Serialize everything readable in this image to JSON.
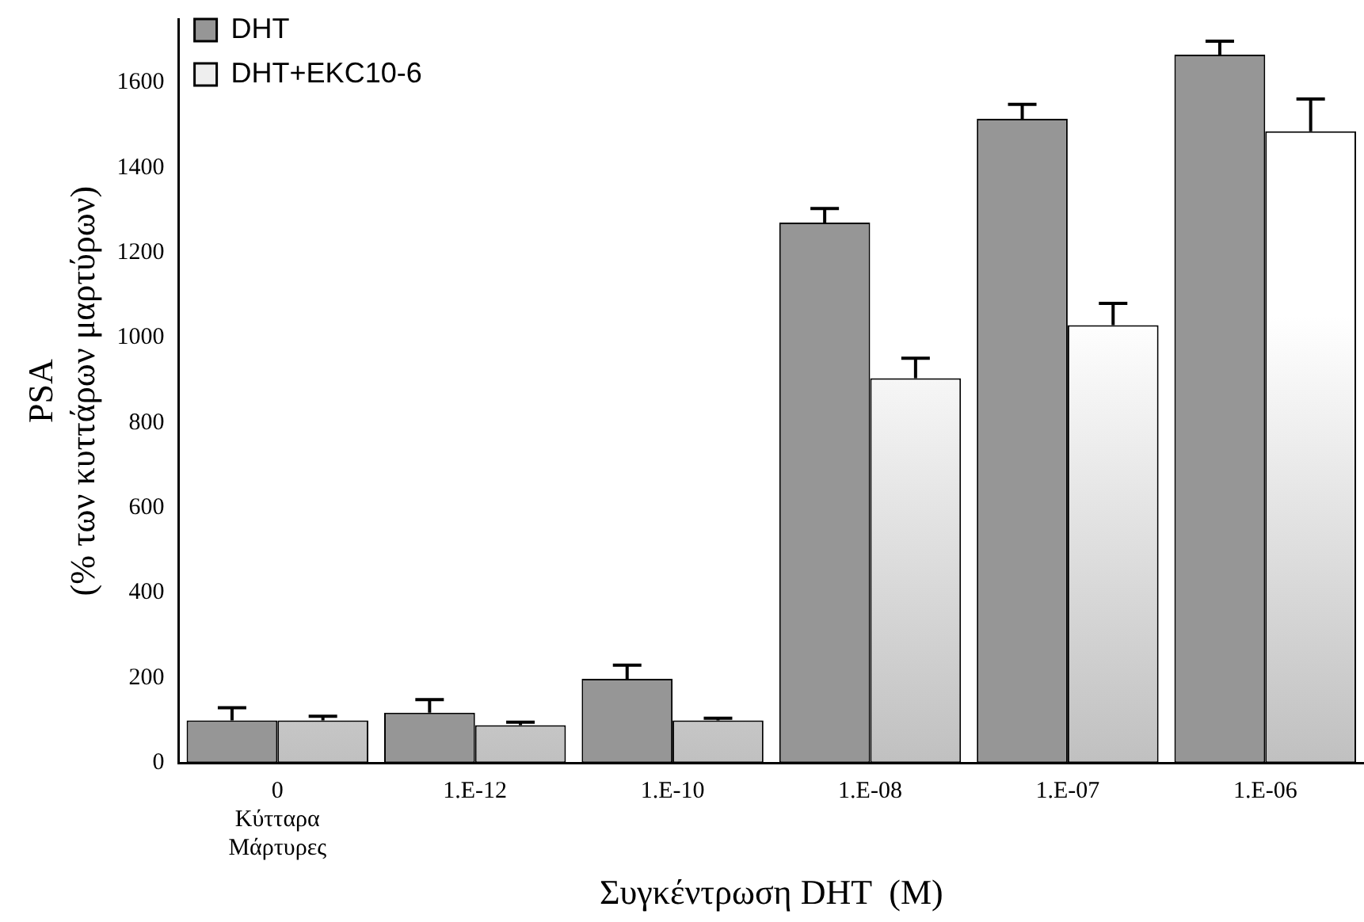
{
  "chart_data": {
    "type": "bar",
    "xlabel": "Συγκέντρωση DHT  (M)",
    "ylabel": "PSA\n(% των κυττάρων μαρτύρων)",
    "categories": [
      "0\nΚύτταρα\nΜάρτυρες",
      "1.E-12",
      "1.E-10",
      "1.E-08",
      "1.E-07",
      "1.E-06"
    ],
    "series": [
      {
        "name": "DHT",
        "color": "#969696",
        "values": [
          100,
          118,
          198,
          1271,
          1515,
          1666
        ],
        "errors": [
          30,
          31,
          32,
          33,
          34,
          32
        ]
      },
      {
        "name": "DHT+EKC10-6",
        "color": "#c0c0c0",
        "values": [
          100,
          89,
          100,
          905,
          1030,
          1486
        ],
        "errors": [
          10,
          7,
          5,
          47,
          51,
          76
        ]
      }
    ],
    "ylim": [
      0,
      1750
    ],
    "yticks": [
      0,
      200,
      400,
      600,
      800,
      1000,
      1200,
      1400,
      1600
    ],
    "grid": false,
    "legend": "top left"
  }
}
